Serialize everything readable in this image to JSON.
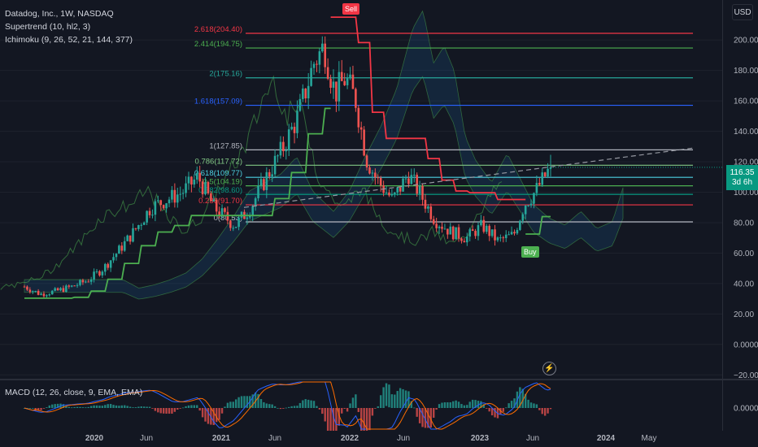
{
  "header": {
    "symbol": "Datadog, Inc., 1W, NASDAQ",
    "supertrend": "Supertrend (10, hl2, 3)",
    "ichimoku": "Ichimoku (9, 26, 52, 21, 144, 377)",
    "macd": "MACD (12, 26, close, 9, EMA, EMA)"
  },
  "currency_button": "USD",
  "last_price": {
    "value": "116.35",
    "countdown": "3d 6h"
  },
  "signals": {
    "sell": "Sell",
    "buy": "Buy"
  },
  "colors": {
    "background": "#131722",
    "up": "#26a69a",
    "down": "#ef5350",
    "supertrend_up": "#4caf50",
    "supertrend_down": "#f23645",
    "grid": "#1e222d"
  },
  "icons": [
    "lightning-icon"
  ],
  "chart_data": {
    "type": "candlestick",
    "x_labels": [
      "2020",
      "Jun",
      "2021",
      "Jun",
      "2022",
      "Jun",
      "2023",
      "Jun",
      "2024",
      "May"
    ],
    "y_ticks": [
      200,
      180,
      160,
      140,
      120,
      100,
      80,
      60,
      40,
      20,
      0,
      -20
    ],
    "y_tick_labels": [
      "200.00",
      "180.00",
      "160.00",
      "140.00",
      "120.00",
      "100.00",
      "80.00",
      "60.00",
      "40.00",
      "20.00",
      "0.0000",
      "−20.00"
    ],
    "ylim": [
      -22,
      222
    ],
    "price_path": [
      [
        0,
        38
      ],
      [
        0.03,
        33
      ],
      [
        0.06,
        35
      ],
      [
        0.09,
        38
      ],
      [
        0.12,
        42
      ],
      [
        0.15,
        50
      ],
      [
        0.18,
        62
      ],
      [
        0.21,
        75
      ],
      [
        0.24,
        90
      ],
      [
        0.27,
        95
      ],
      [
        0.3,
        100
      ],
      [
        0.33,
        110
      ],
      [
        0.36,
        90
      ],
      [
        0.4,
        78
      ],
      [
        0.43,
        90
      ],
      [
        0.46,
        110
      ],
      [
        0.49,
        128
      ],
      [
        0.52,
        150
      ],
      [
        0.55,
        185
      ],
      [
        0.57,
        196
      ],
      [
        0.59,
        165
      ],
      [
        0.61,
        175
      ],
      [
        0.63,
        160
      ],
      [
        0.65,
        122
      ],
      [
        0.67,
        108
      ],
      [
        0.7,
        95
      ],
      [
        0.73,
        112
      ],
      [
        0.75,
        100
      ],
      [
        0.78,
        82
      ],
      [
        0.81,
        74
      ],
      [
        0.84,
        70
      ],
      [
        0.87,
        78
      ],
      [
        0.9,
        68
      ],
      [
        0.93,
        72
      ],
      [
        0.95,
        92
      ],
      [
        0.97,
        100
      ],
      [
        1.0,
        116.35
      ]
    ],
    "fibonacci": [
      {
        "level": "2.618",
        "price": 204.4,
        "color": "#f23645"
      },
      {
        "level": "2.414",
        "price": 194.75,
        "color": "#4caf50"
      },
      {
        "level": "2",
        "price": 175.16,
        "color": "#26a69a"
      },
      {
        "level": "1.618",
        "price": 157.09,
        "color": "#2962ff"
      },
      {
        "level": "1",
        "price": 127.85,
        "color": "#b2b5be"
      },
      {
        "level": "0.786",
        "price": 117.72,
        "color": "#81c784"
      },
      {
        "level": "0.618",
        "price": 109.77,
        "color": "#4dd0e1"
      },
      {
        "level": "0.5",
        "price": 104.19,
        "color": "#4caf50"
      },
      {
        "level": "0.382",
        "price": 98.6,
        "color": "#089981"
      },
      {
        "level": "0.236",
        "price": 91.7,
        "color": "#f23645"
      },
      {
        "level": "0",
        "price": 80.53,
        "color": "#b2b5be"
      }
    ],
    "fibonacci_labels": [
      "2.618(204.40)",
      "2.414(194.75)",
      "2(175.16)",
      "1.618(157.09)",
      "1(127.85)",
      "0.786(117.72)",
      "0.618(109.77)",
      "0.5(104.19)",
      "0.382(98.60)",
      "0.236(91.70)",
      "0(80.53)"
    ],
    "macd_zero_label": "0.0000"
  }
}
